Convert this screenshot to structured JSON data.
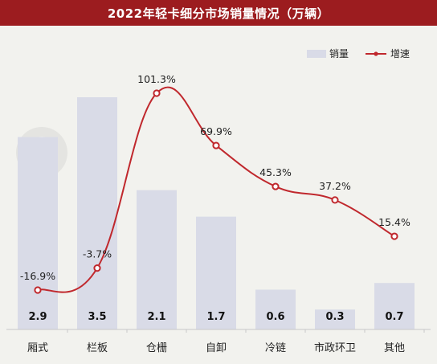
{
  "chart_data": {
    "type": "bar+line",
    "title": "2022年轻卡细分市场销量情况（万辆）",
    "categories": [
      "厢式",
      "栏板",
      "仓栅",
      "自卸",
      "冷链",
      "市政环卫",
      "其他"
    ],
    "series": [
      {
        "name": "销量",
        "type": "bar",
        "values": [
          2.9,
          3.5,
          2.1,
          1.7,
          0.6,
          0.3,
          0.7
        ],
        "color": "#d9dbe7"
      },
      {
        "name": "增速",
        "type": "line",
        "values": [
          -16.9,
          -3.7,
          101.3,
          69.9,
          45.3,
          37.2,
          15.4
        ],
        "labels": [
          "-16.9%",
          "-3.7%",
          "101.3%",
          "69.9%",
          "45.3%",
          "37.2%",
          "15.4%"
        ],
        "color": "#c0282d"
      }
    ],
    "legend_position": "top-right",
    "grid": false
  },
  "colors": {
    "title_bg": "#9c1c1f",
    "background": "#f2f2ee"
  }
}
